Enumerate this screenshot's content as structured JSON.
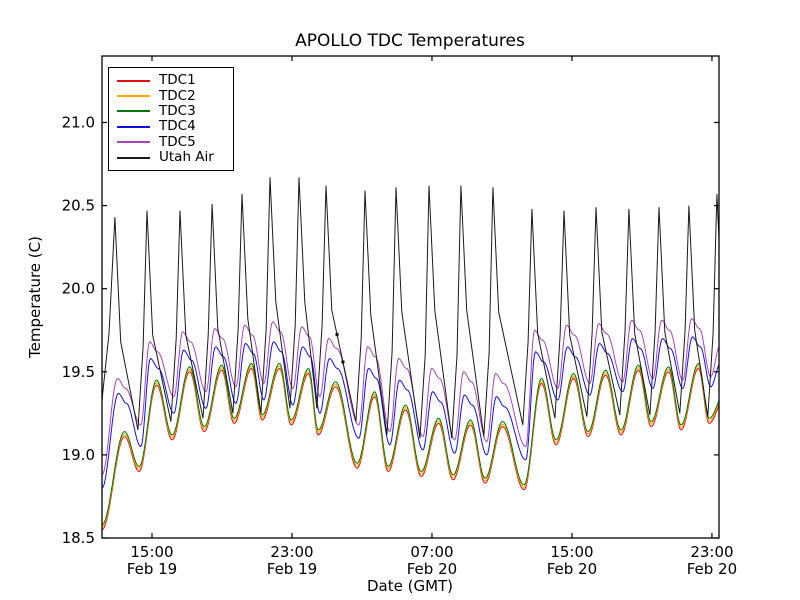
{
  "figure": {
    "background": "#ffffff"
  },
  "chart_data": {
    "type": "line",
    "title": "APOLLO TDC Temperatures",
    "xlabel": "Date (GMT)",
    "ylabel": "Temperature (C)",
    "ylim": [
      18.5,
      21.4
    ],
    "xlim_hours": [
      0,
      35.26
    ],
    "yticks": [
      18.5,
      19.0,
      19.5,
      20.0,
      20.5,
      21.0
    ],
    "xticks": [
      {
        "t": 2.857,
        "time": "15:00",
        "date": "Feb 19"
      },
      {
        "t": 10.857,
        "time": "23:00",
        "date": "Feb 19"
      },
      {
        "t": 18.857,
        "time": "07:00",
        "date": "Feb 20"
      },
      {
        "t": 26.857,
        "time": "15:00",
        "date": "Feb 20"
      },
      {
        "t": 34.857,
        "time": "23:00",
        "date": "Feb 20"
      }
    ],
    "grid": false,
    "legend_position": "upper left",
    "series": [
      {
        "name": "TDC1",
        "color": "#dd1111",
        "group": "cluster",
        "offset": -0.03
      },
      {
        "name": "TDC2",
        "color": "#ffa500",
        "group": "cluster",
        "offset": -0.015
      },
      {
        "name": "TDC3",
        "color": "#007700",
        "group": "cluster",
        "offset": 0
      },
      {
        "name": "TDC4",
        "color": "#1111dd",
        "group": "tdc4",
        "offset": 0
      },
      {
        "name": "TDC5",
        "color": "#aa44bb",
        "group": "tdc5",
        "offset": 0
      },
      {
        "name": "Utah Air",
        "color": "#1a1a1a",
        "group": "air",
        "offset": 0
      }
    ],
    "start_values": {
      "cluster": 18.58,
      "tdc4": 18.8,
      "tdc5": 18.88,
      "air": 19.33
    },
    "cycles": [
      {
        "p": 0.74,
        "air_max": 20.43,
        "cl_max": 19.14,
        "t4_max": 19.37,
        "t5_max": 19.46
      },
      {
        "p": 2.57,
        "air_max": 20.47,
        "air_min": 19.15,
        "cl_max": 19.45,
        "cl_min": 18.93,
        "t4_max": 19.58,
        "t4_min": 19.05,
        "t5_max": 19.68,
        "t5_min": 19.18
      },
      {
        "p": 4.46,
        "air_max": 20.47,
        "air_min": 19.2,
        "cl_max": 19.53,
        "cl_min": 19.12,
        "t4_max": 19.63,
        "t4_min": 19.25,
        "t5_max": 19.74,
        "t5_min": 19.35
      },
      {
        "p": 6.29,
        "air_max": 20.51,
        "air_min": 19.22,
        "cl_max": 19.54,
        "cl_min": 19.17,
        "t4_max": 19.65,
        "t4_min": 19.28,
        "t5_max": 19.76,
        "t5_min": 19.38
      },
      {
        "p": 8.0,
        "air_max": 20.57,
        "air_min": 19.25,
        "cl_max": 19.55,
        "cl_min": 19.22,
        "t4_max": 19.67,
        "t4_min": 19.31,
        "t5_max": 19.78,
        "t5_min": 19.41
      },
      {
        "p": 9.6,
        "air_max": 20.67,
        "air_min": 19.25,
        "cl_max": 19.55,
        "cl_min": 19.24,
        "t4_max": 19.68,
        "t4_min": 19.33,
        "t5_max": 19.8,
        "t5_min": 19.43
      },
      {
        "p": 11.26,
        "air_max": 20.67,
        "air_min": 19.28,
        "cl_max": 19.52,
        "cl_min": 19.21,
        "t4_max": 19.65,
        "t4_min": 19.3,
        "t5_max": 19.77,
        "t5_min": 19.4
      },
      {
        "p": 12.8,
        "air_max": 20.62,
        "air_min": 19.28,
        "cl_max": 19.44,
        "cl_min": 19.15,
        "t4_max": 19.58,
        "t4_min": 19.25,
        "t5_max": 19.7,
        "t5_min": 19.35
      },
      {
        "p": 15.03,
        "air_max": 20.59,
        "air_min": 19.2,
        "cl_max": 19.38,
        "cl_min": 18.95,
        "t4_max": 19.52,
        "t4_min": 19.1,
        "t5_max": 19.65,
        "t5_min": 19.18
      },
      {
        "p": 16.8,
        "air_max": 20.61,
        "air_min": 19.12,
        "cl_max": 19.3,
        "cl_min": 18.93,
        "t4_max": 19.45,
        "t4_min": 19.06,
        "t5_max": 19.58,
        "t5_min": 19.14
      },
      {
        "p": 18.69,
        "air_max": 20.62,
        "air_min": 19.1,
        "cl_max": 19.22,
        "cl_min": 18.9,
        "t4_max": 19.38,
        "t4_min": 19.03,
        "t5_max": 19.52,
        "t5_min": 19.11
      },
      {
        "p": 20.51,
        "air_max": 20.62,
        "air_min": 19.1,
        "cl_max": 19.21,
        "cl_min": 18.88,
        "t4_max": 19.36,
        "t4_min": 19.01,
        "t5_max": 19.5,
        "t5_min": 19.09
      },
      {
        "p": 22.34,
        "air_max": 20.61,
        "air_min": 19.11,
        "cl_max": 19.2,
        "cl_min": 18.86,
        "t4_max": 19.35,
        "t4_min": 19.0,
        "t5_max": 19.49,
        "t5_min": 19.08
      },
      {
        "p": 24.57,
        "air_max": 20.48,
        "air_min": 19.18,
        "cl_max": 19.46,
        "cl_min": 18.82,
        "t4_max": 19.62,
        "t4_min": 18.97,
        "t5_max": 19.75,
        "t5_min": 19.05
      },
      {
        "p": 26.4,
        "air_max": 20.47,
        "air_min": 19.22,
        "cl_max": 19.49,
        "cl_min": 19.09,
        "t4_max": 19.65,
        "t4_min": 19.33,
        "t5_max": 19.78,
        "t5_min": 19.4
      },
      {
        "p": 28.23,
        "air_max": 20.49,
        "air_min": 19.23,
        "cl_max": 19.51,
        "cl_min": 19.14,
        "t4_max": 19.67,
        "t4_min": 19.36,
        "t5_max": 19.79,
        "t5_min": 19.43
      },
      {
        "p": 30.11,
        "air_max": 20.48,
        "air_min": 19.24,
        "cl_max": 19.54,
        "cl_min": 19.15,
        "t4_max": 19.7,
        "t4_min": 19.38,
        "t5_max": 19.81,
        "t5_min": 19.44
      },
      {
        "p": 31.83,
        "air_max": 20.49,
        "air_min": 19.24,
        "cl_max": 19.53,
        "cl_min": 19.2,
        "t4_max": 19.7,
        "t4_min": 19.4,
        "t5_max": 19.81,
        "t5_min": 19.46
      },
      {
        "p": 33.54,
        "air_max": 20.5,
        "air_min": 19.25,
        "cl_max": 19.55,
        "cl_min": 19.18,
        "t4_max": 19.71,
        "t4_min": 19.4,
        "t5_max": 19.82,
        "t5_min": 19.45
      },
      {
        "p": 35.14,
        "air_max": 20.57,
        "air_min": 19.23,
        "cl_max": 19.4,
        "cl_min": 19.22,
        "t4_max": 19.55,
        "t4_min": 19.41,
        "t5_max": 19.65,
        "t5_min": 19.47
      }
    ],
    "utah_air_marks_t": [
      13.43,
      13.77
    ]
  }
}
